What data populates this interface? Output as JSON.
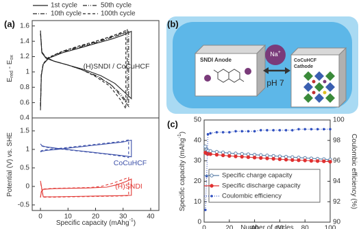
{
  "chart_data": [
    {
      "type": "line",
      "panel_label": "(a)",
      "ylabel": [
        "E",
        "red",
        " - E",
        "ox"
      ],
      "xlim": [
        -3,
        43
      ],
      "ylim": [
        0.4,
        1.67
      ],
      "yticks": [
        0.4,
        0.6,
        0.8,
        1,
        1.2,
        1.4,
        1.6
      ],
      "annotations": [
        {
          "text": "(H)SNDI / CoCuHCF",
          "color": "#333333"
        }
      ],
      "series": [
        {
          "name": "1st cycle",
          "color": "#222222",
          "dash": "none",
          "x": [
            0,
            0.3,
            1,
            3,
            8,
            14,
            20,
            26,
            30,
            33,
            33,
            31,
            27,
            22,
            16,
            10,
            5,
            2,
            0.5,
            0
          ],
          "values": [
            0.5,
            0.95,
            1.1,
            1.18,
            1.25,
            1.31,
            1.37,
            1.43,
            1.48,
            1.53,
            0.65,
            0.72,
            0.85,
            0.95,
            1.03,
            1.09,
            1.14,
            1.18,
            1.25,
            1.5
          ]
        },
        {
          "name": "10th cycle",
          "color": "#222222",
          "dash": "6,2,1,2",
          "x": [
            0,
            0.3,
            1,
            3,
            8,
            14,
            20,
            26,
            30,
            32,
            32,
            30,
            26,
            21,
            15,
            10,
            5,
            2,
            0.5,
            0
          ],
          "values": [
            0.55,
            0.96,
            1.1,
            1.18,
            1.26,
            1.32,
            1.38,
            1.45,
            1.5,
            1.54,
            0.55,
            0.65,
            0.82,
            0.94,
            1.03,
            1.09,
            1.14,
            1.18,
            1.25,
            1.52
          ]
        },
        {
          "name": "50th cycle",
          "color": "#222222",
          "dash": "6,2,1,2,1,2",
          "x": [
            0,
            0.3,
            1,
            3,
            8,
            14,
            20,
            26,
            30,
            31.5,
            31.5,
            29,
            25,
            20,
            15,
            10,
            5,
            2,
            0.5,
            0
          ],
          "values": [
            0.55,
            0.96,
            1.11,
            1.19,
            1.27,
            1.33,
            1.39,
            1.46,
            1.51,
            1.55,
            0.6,
            0.72,
            0.85,
            0.95,
            1.03,
            1.09,
            1.14,
            1.19,
            1.26,
            1.53
          ]
        },
        {
          "name": "100th cycle",
          "color": "#222222",
          "dash": "4,3",
          "x": [
            0,
            0.3,
            1,
            3,
            8,
            14,
            20,
            26,
            29,
            31,
            31,
            29,
            25,
            20,
            15,
            10,
            5,
            2,
            0.5,
            0
          ],
          "values": [
            0.56,
            0.97,
            1.11,
            1.19,
            1.27,
            1.34,
            1.4,
            1.47,
            1.51,
            1.54,
            0.52,
            0.64,
            0.82,
            0.94,
            1.03,
            1.09,
            1.14,
            1.19,
            1.26,
            1.54
          ]
        }
      ]
    },
    {
      "type": "line",
      "ylabel": [
        "Potential (V) vs. SHE"
      ],
      "xlabel": [
        "Specific capacity (mAhg",
        "-1",
        ")"
      ],
      "xlim": [
        -3,
        43
      ],
      "xticks": [
        0,
        10,
        20,
        30,
        40
      ],
      "ylim": [
        -0.65,
        1.85
      ],
      "yticks": [
        -0.5,
        0,
        0.5,
        1,
        1.5
      ],
      "annotations": [
        {
          "text": "CoCuHCF",
          "color": "#3b4fa8"
        },
        {
          "text": "(H)SNDI",
          "color": "#e23a36"
        }
      ],
      "series": [
        {
          "color": "#3b4fa8",
          "dash": "none",
          "x": [
            0,
            0.5,
            2,
            6,
            12,
            18,
            24,
            30,
            33,
            33,
            30,
            24,
            18,
            12,
            6,
            2,
            0.5,
            0
          ],
          "values": [
            0.93,
            0.95,
            0.97,
            1.0,
            1.05,
            1.1,
            1.15,
            1.2,
            1.25,
            0.8,
            0.83,
            0.88,
            0.93,
            0.98,
            1.03,
            1.07,
            1.1,
            1.15
          ]
        },
        {
          "color": "#3b4fa8",
          "dash": "4,3",
          "x": [
            0,
            0.5,
            2,
            6,
            12,
            18,
            24,
            30,
            32,
            32,
            30,
            24,
            18,
            12,
            6,
            2,
            0.5,
            0
          ],
          "values": [
            0.95,
            0.97,
            0.99,
            1.02,
            1.07,
            1.12,
            1.17,
            1.22,
            1.26,
            0.78,
            0.81,
            0.87,
            0.92,
            0.97,
            1.02,
            1.06,
            1.09,
            1.13
          ]
        },
        {
          "color": "#e23a36",
          "dash": "none",
          "x": [
            0,
            0.3,
            1,
            5,
            12,
            18,
            24,
            28,
            31,
            33,
            33,
            28,
            20,
            12,
            5,
            1,
            0
          ],
          "values": [
            -0.3,
            -0.15,
            -0.08,
            -0.06,
            -0.05,
            -0.04,
            -0.02,
            0.05,
            0.13,
            0.2,
            -0.24,
            -0.25,
            -0.26,
            -0.27,
            -0.28,
            -0.28,
            0.15
          ]
        },
        {
          "color": "#e23a36",
          "dash": "4,3",
          "x": [
            0,
            0.3,
            1,
            5,
            12,
            18,
            22,
            26,
            29,
            32,
            32,
            28,
            20,
            12,
            5,
            1,
            0
          ],
          "values": [
            -0.3,
            -0.14,
            -0.07,
            -0.05,
            -0.04,
            -0.03,
            0.0,
            0.08,
            0.16,
            0.24,
            -0.25,
            -0.26,
            -0.27,
            -0.28,
            -0.29,
            -0.29,
            0.12
          ]
        }
      ]
    },
    {
      "type": "line",
      "panel_label": "(c)",
      "ylabel": [
        "Specific capacity (mAhg",
        "-1",
        ")"
      ],
      "y2label": [
        "Coulombic efficiency (%)"
      ],
      "xlabel": [
        "Number of cycles"
      ],
      "xlim": [
        0,
        100
      ],
      "xticks": [
        0,
        20,
        40,
        60,
        80,
        100
      ],
      "ylim": [
        0,
        50
      ],
      "yticks": [
        0,
        10,
        20,
        30,
        40,
        50
      ],
      "y2lim": [
        90,
        100
      ],
      "y2ticks": [
        90,
        92,
        94,
        96,
        98,
        100
      ],
      "x": [
        1,
        2,
        3,
        5,
        10,
        15,
        20,
        25,
        30,
        35,
        40,
        45,
        50,
        55,
        60,
        65,
        70,
        75,
        80,
        85,
        90,
        95,
        100
      ],
      "series": [
        {
          "name": "Specific charge capacity",
          "color": "#5a7fa8",
          "marker": "open-circle",
          "values": [
            37,
            35.5,
            35,
            34.8,
            34.4,
            34.1,
            33.8,
            33.6,
            33.4,
            33.2,
            33,
            32.8,
            32.6,
            32.4,
            32.2,
            32,
            31.8,
            31.6,
            31.4,
            31.2,
            31,
            30.8,
            30.6
          ]
        },
        {
          "name": "Specific discharge capacity",
          "color": "#e03030",
          "marker": "filled-circle",
          "values": [
            34,
            33.6,
            33.4,
            33.3,
            33,
            32.7,
            32.4,
            32.2,
            32,
            31.8,
            31.6,
            31.4,
            31.2,
            31,
            30.8,
            30.6,
            30.4,
            30.3,
            30.2,
            30,
            29.9,
            29.8,
            29.6
          ]
        },
        {
          "name": "Coulombic efficiency",
          "color": "#3050c0",
          "marker": "dot",
          "axis": "y2",
          "values": [
            91.2,
            94.5,
            98.6,
            98.7,
            98.8,
            98.8,
            98.8,
            98.9,
            98.9,
            98.9,
            98.9,
            99,
            99,
            99,
            99,
            99,
            99,
            99.1,
            99.1,
            99.1,
            99.1,
            99.1,
            99.1
          ]
        }
      ]
    }
  ],
  "diagram": {
    "panel_label": "(b)",
    "anode": "SNDI Anode",
    "ion": [
      "Na",
      "+"
    ],
    "condition": "pH 7",
    "cathode": [
      "CoCuHCF",
      "Cathode"
    ]
  }
}
